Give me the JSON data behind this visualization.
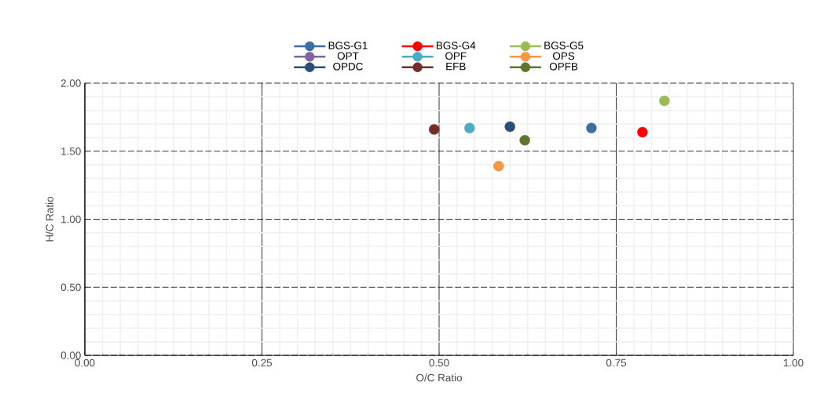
{
  "chart_data": {
    "type": "scatter",
    "xlabel": "O/C Ratio",
    "ylabel": "H/C Ratio",
    "xlim": [
      0,
      1
    ],
    "ylim": [
      0,
      2
    ],
    "xticks": [
      {
        "value": 0,
        "label": "0.00"
      },
      {
        "value": 0.25,
        "label": "0.25"
      },
      {
        "value": 0.5,
        "label": "0.50"
      },
      {
        "value": 0.75,
        "label": "0.75"
      },
      {
        "value": 1,
        "label": "1.00"
      }
    ],
    "yticks": [
      {
        "value": 0,
        "label": "0.00"
      },
      {
        "value": 0.5,
        "label": "0.50"
      },
      {
        "value": 1,
        "label": "1.00"
      },
      {
        "value": 1.5,
        "label": "1.50"
      },
      {
        "value": 2,
        "label": "2.00"
      }
    ],
    "grid": true,
    "legend": "top",
    "marker": "circle",
    "series": [
      {
        "name": "BGS-G1",
        "color": "#3b6ea5",
        "x": [
          0.715
        ],
        "values": [
          1.67
        ]
      },
      {
        "name": "BGS-G4",
        "color": "#ff0000",
        "x": [
          0.787
        ],
        "values": [
          1.64
        ]
      },
      {
        "name": "BGS-G5",
        "color": "#9bbb59",
        "x": [
          0.818
        ],
        "values": [
          1.87
        ]
      },
      {
        "name": "OPT",
        "color": "#8064a2",
        "values": [
          null
        ]
      },
      {
        "name": "OPF",
        "color": "#4bacc6",
        "x": [
          0.543
        ],
        "values": [
          1.67
        ]
      },
      {
        "name": "OPS",
        "color": "#f79646",
        "x": [
          0.584
        ],
        "values": [
          1.39
        ]
      },
      {
        "name": "OPDC",
        "color": "#2c4d75",
        "x": [
          0.6
        ],
        "values": [
          1.68
        ]
      },
      {
        "name": "EFB",
        "color": "#772c2a",
        "x": [
          0.493
        ],
        "values": [
          1.66
        ]
      },
      {
        "name": "OPFB",
        "color": "#5f7530",
        "x": [
          0.621
        ],
        "values": [
          1.58
        ]
      }
    ]
  }
}
